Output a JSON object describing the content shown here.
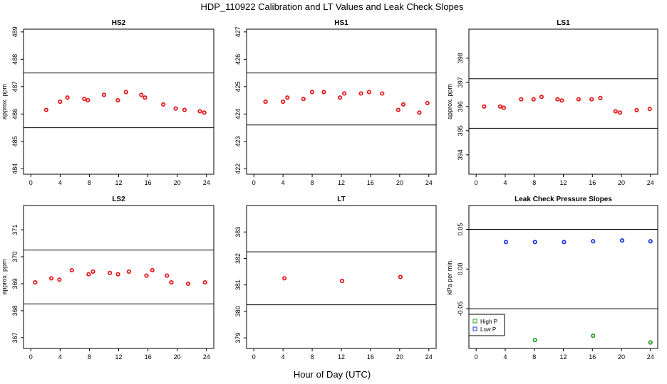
{
  "figure": {
    "title": "HDP_110922  Calibration and LT Values and Leak Check Slopes",
    "xlabel": "Hour of Day (UTC)"
  },
  "colors": {
    "red": "#e31a1c",
    "blue": "#1f3bd6",
    "green": "#2ca02c",
    "line": "#000000"
  },
  "chart_data": [
    {
      "type": "scatter",
      "title": "HS2",
      "ylabel": "approx. ppm",
      "xlim": [
        -1,
        25
      ],
      "ylim": [
        483.8,
        489.1
      ],
      "xticks": [
        0,
        4,
        8,
        12,
        16,
        20,
        24
      ],
      "yticks": [
        484,
        485,
        486,
        487,
        488,
        489
      ],
      "hlines": [
        487.5,
        485.5
      ],
      "series": [
        {
          "color": "red",
          "x": [
            2.1,
            4.0,
            5.0,
            7.3,
            7.8,
            10.0,
            11.9,
            13.0,
            15.1,
            15.6,
            18.1,
            19.8,
            21.0,
            23.1,
            23.7
          ],
          "y": [
            486.15,
            486.45,
            486.6,
            486.55,
            486.5,
            486.7,
            486.5,
            486.8,
            486.7,
            486.6,
            486.35,
            486.2,
            486.15,
            486.1,
            486.05
          ]
        }
      ]
    },
    {
      "type": "scatter",
      "title": "HS1",
      "ylabel": "",
      "xlim": [
        -1,
        25
      ],
      "ylim": [
        421.8,
        427.1
      ],
      "xticks": [
        0,
        4,
        8,
        12,
        16,
        20,
        24
      ],
      "yticks": [
        422,
        423,
        424,
        425,
        426,
        427
      ],
      "hlines": [
        425.5,
        423.6
      ],
      "series": [
        {
          "color": "red",
          "x": [
            1.6,
            4.0,
            4.6,
            6.8,
            8.0,
            9.6,
            11.8,
            12.4,
            14.7,
            15.8,
            17.6,
            19.8,
            20.5,
            22.7,
            23.8
          ],
          "y": [
            424.45,
            424.45,
            424.6,
            424.55,
            424.8,
            424.8,
            424.6,
            424.75,
            424.75,
            424.8,
            424.75,
            424.15,
            424.35,
            424.05,
            424.4
          ]
        }
      ]
    },
    {
      "type": "scatter",
      "title": "LS1",
      "ylabel": "approx. ppm",
      "xlim": [
        -1,
        25
      ],
      "ylim": [
        393.2,
        399.2
      ],
      "xticks": [
        0,
        4,
        8,
        12,
        16,
        20,
        24
      ],
      "yticks": [
        394,
        395,
        396,
        397,
        398
      ],
      "hlines": [
        397.15,
        395.1
      ],
      "series": [
        {
          "color": "red",
          "x": [
            1.1,
            3.3,
            3.8,
            6.2,
            7.9,
            9.0,
            11.2,
            11.8,
            14.1,
            15.9,
            17.1,
            19.2,
            19.8,
            22.1,
            23.9
          ],
          "y": [
            396.0,
            396.0,
            395.95,
            396.3,
            396.3,
            396.4,
            396.3,
            396.25,
            396.3,
            396.3,
            396.35,
            395.8,
            395.75,
            395.85,
            395.9
          ]
        }
      ]
    },
    {
      "type": "scatter",
      "title": "LS2",
      "ylabel": "approx. ppm",
      "xlim": [
        -1,
        25
      ],
      "ylim": [
        366.6,
        371.9
      ],
      "xticks": [
        0,
        4,
        8,
        12,
        16,
        20,
        24
      ],
      "yticks": [
        367,
        368,
        369,
        370,
        371
      ],
      "hlines": [
        370.25,
        368.25
      ],
      "series": [
        {
          "color": "red",
          "x": [
            0.6,
            2.8,
            3.9,
            5.6,
            7.9,
            8.5,
            10.8,
            11.9,
            13.4,
            15.8,
            16.6,
            18.6,
            19.2,
            21.5,
            23.8
          ],
          "y": [
            369.05,
            369.2,
            369.15,
            369.5,
            369.35,
            369.45,
            369.4,
            369.35,
            369.45,
            369.3,
            369.5,
            369.3,
            369.05,
            369.0,
            369.05
          ]
        }
      ]
    },
    {
      "type": "scatter",
      "title": "LT",
      "ylabel": "",
      "xlim": [
        -1,
        25
      ],
      "ylim": [
        378.6,
        384.0
      ],
      "xticks": [
        0,
        4,
        8,
        12,
        16,
        20,
        24
      ],
      "yticks": [
        379,
        380,
        381,
        382,
        383
      ],
      "hlines": [
        382.25,
        380.25
      ],
      "series": [
        {
          "color": "red",
          "x": [
            4.2,
            12.1,
            20.1
          ],
          "y": [
            381.25,
            381.15,
            381.3
          ]
        }
      ]
    },
    {
      "type": "scatter",
      "title": "Leak Check Pressure Slopes",
      "ylabel": "kPa per min.",
      "xlim": [
        -1,
        25
      ],
      "ylim": [
        -0.1,
        0.08
      ],
      "xticks": [
        0,
        4,
        8,
        12,
        16,
        20,
        24
      ],
      "yticks": [
        -0.05,
        0.0,
        0.05
      ],
      "ytick_labels": [
        "-0.05",
        "0.00",
        "0.05"
      ],
      "hlines": [
        0.05,
        -0.05
      ],
      "legend": "bottom-left",
      "series": [
        {
          "name": "High P",
          "color": "green",
          "x": [
            8.1,
            16.1,
            24.0
          ],
          "y": [
            -0.0895,
            -0.084,
            -0.0925
          ]
        },
        {
          "name": "Low P",
          "color": "blue",
          "x": [
            4.1,
            8.1,
            12.1,
            16.1,
            20.1,
            24.0
          ],
          "y": [
            0.034,
            0.034,
            0.034,
            0.035,
            0.036,
            0.035
          ]
        }
      ]
    }
  ]
}
